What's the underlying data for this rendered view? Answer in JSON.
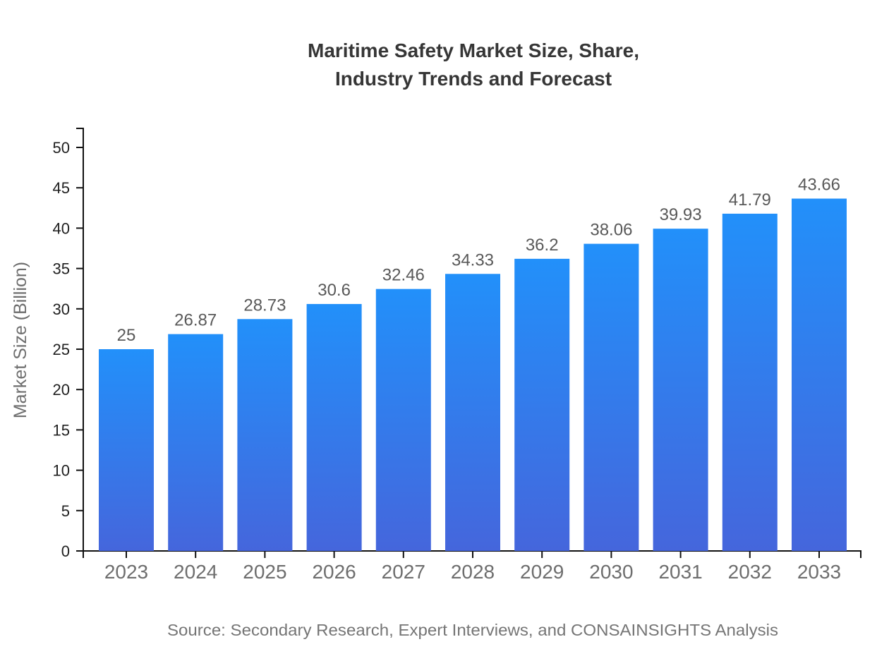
{
  "header": {
    "title_line1": "Maritime Safety Market Size, Share,",
    "title_line2": "Industry Trends and Forecast"
  },
  "footer": {
    "source": "Source: Secondary Research, Expert Interviews, and CONSAINSIGHTS Analysis"
  },
  "chart_data": {
    "type": "bar",
    "title": "Maritime Safety Market Size, Share, Industry Trends and Forecast",
    "categories": [
      "2023",
      "2024",
      "2025",
      "2026",
      "2027",
      "2028",
      "2029",
      "2030",
      "2031",
      "2032",
      "2033"
    ],
    "values": [
      25,
      26.87,
      28.73,
      30.6,
      32.46,
      34.33,
      36.2,
      38.06,
      39.93,
      41.79,
      43.66
    ],
    "xlabel": "",
    "ylabel": "Market Size (Billion)",
    "ylim": [
      0,
      50
    ],
    "ytick_step": 5,
    "yticks": [
      0,
      5,
      10,
      15,
      20,
      25,
      30,
      35,
      40,
      45,
      50
    ],
    "grid": false,
    "legend": false,
    "value_labels_shown": true,
    "colors": {
      "bar_gradient_top": "#2290fa",
      "bar_gradient_bottom": "#4566dc",
      "axis": "#111111",
      "y_tick_label": "#1f1f1f",
      "x_tick_label": "#6e6e6e",
      "value_label": "#595959",
      "title": "#363636",
      "y_axis_title": "#6e6e6e",
      "source": "#757575"
    }
  }
}
